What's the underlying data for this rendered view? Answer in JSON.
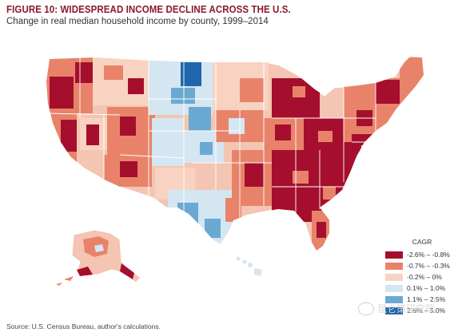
{
  "figure": {
    "title": "FIGURE 10: WIDESPREAD INCOME DECLINE ACROSS THE U.S.",
    "subtitle": "Change in real median household income by county, 1999–2014",
    "source": "Source: U.S. Census Bureau, author's calculations."
  },
  "legend": {
    "title": "CAGR",
    "items": [
      {
        "label": "-2.6% – -0.8%",
        "color": "#a50f2d"
      },
      {
        "label": "-0.7% – -0.3%",
        "color": "#e8836a"
      },
      {
        "label": "-0.2% – 0%",
        "color": "#f8d3c2"
      },
      {
        "label": "0.1% – 1.0%",
        "color": "#d4e6f1"
      },
      {
        "label": "1.1% – 2.5%",
        "color": "#6aa9d2"
      },
      {
        "label": "2.6% – 5.0%",
        "color": "#2166ac"
      }
    ]
  },
  "watermark": {
    "text": "昆仑策研究院"
  },
  "colors": {
    "title": "#8b1a2b",
    "state_border": "#ffffff"
  }
}
